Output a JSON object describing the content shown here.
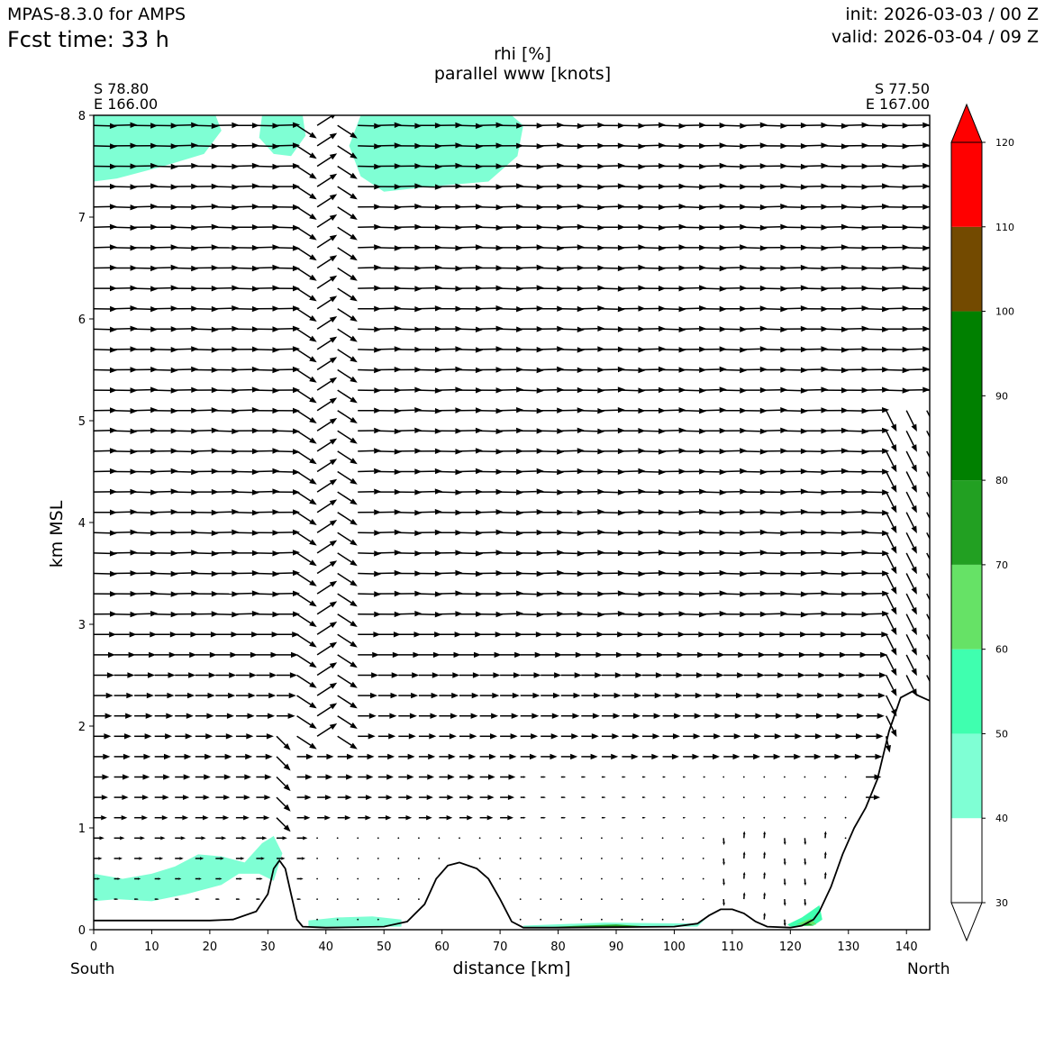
{
  "header": {
    "model": "MPAS-8.3.0 for AMPS",
    "fcst": "Fcst time:   33 h",
    "init": "init: 2026-03-03 / 00 Z",
    "valid": "valid: 2026-03-04 / 09 Z"
  },
  "chart_data": {
    "type": "contourf",
    "title": [
      "rhi [%]",
      "parallel www [knots]"
    ],
    "xlabel": "distance [km]",
    "ylabel": "km MSL",
    "xlim": [
      0,
      144
    ],
    "ylim": [
      0,
      8
    ],
    "xticks": [
      0,
      10,
      20,
      30,
      40,
      50,
      60,
      70,
      80,
      90,
      100,
      110,
      120,
      130,
      140
    ],
    "yticks": [
      0,
      1,
      2,
      3,
      4,
      5,
      6,
      7,
      8
    ],
    "endpoints": {
      "start": [
        "S 78.80",
        "E 166.00"
      ],
      "end": [
        "S 77.50",
        "E 167.00"
      ],
      "start_label": "South",
      "end_label": "North"
    },
    "colorbar": {
      "levels": [
        30,
        40,
        50,
        60,
        70,
        80,
        90,
        100,
        110,
        120
      ],
      "tick_labels": [
        "30",
        "40",
        "50",
        "60",
        "70",
        "80",
        "90",
        "100",
        "110",
        "120"
      ],
      "bins": [
        {
          "from": 30,
          "to": 40,
          "color": "#ffffff"
        },
        {
          "from": 40,
          "to": 50,
          "color": "#7fffd4"
        },
        {
          "from": 50,
          "to": 60,
          "color": "#3fffaf"
        },
        {
          "from": 60,
          "to": 70,
          "color": "#66e266"
        },
        {
          "from": 70,
          "to": 80,
          "color": "#22a022"
        },
        {
          "from": 80,
          "to": 100,
          "color": "#008000"
        },
        {
          "from": 100,
          "to": 110,
          "color": "#734a00"
        },
        {
          "from": 110,
          "to": 120,
          "color": "#ff0000"
        }
      ],
      "extend": "both"
    },
    "terrain_profile": [
      [
        0,
        0.09
      ],
      [
        10,
        0.09
      ],
      [
        20,
        0.09
      ],
      [
        24,
        0.1
      ],
      [
        28,
        0.18
      ],
      [
        30,
        0.35
      ],
      [
        31,
        0.6
      ],
      [
        32,
        0.68
      ],
      [
        33,
        0.6
      ],
      [
        34,
        0.35
      ],
      [
        35,
        0.1
      ],
      [
        36,
        0.03
      ],
      [
        40,
        0.02
      ],
      [
        50,
        0.03
      ],
      [
        54,
        0.08
      ],
      [
        57,
        0.25
      ],
      [
        59,
        0.5
      ],
      [
        61,
        0.63
      ],
      [
        63,
        0.66
      ],
      [
        66,
        0.6
      ],
      [
        68,
        0.5
      ],
      [
        70,
        0.3
      ],
      [
        72,
        0.08
      ],
      [
        74,
        0.02
      ],
      [
        80,
        0.02
      ],
      [
        100,
        0.03
      ],
      [
        104,
        0.06
      ],
      [
        106,
        0.14
      ],
      [
        108,
        0.2
      ],
      [
        110,
        0.2
      ],
      [
        112,
        0.16
      ],
      [
        114,
        0.08
      ],
      [
        116,
        0.03
      ],
      [
        120,
        0.02
      ],
      [
        122,
        0.04
      ],
      [
        124,
        0.1
      ],
      [
        125,
        0.18
      ],
      [
        127,
        0.42
      ],
      [
        129,
        0.74
      ],
      [
        131,
        1.0
      ],
      [
        133,
        1.2
      ],
      [
        135,
        1.48
      ],
      [
        137,
        1.95
      ],
      [
        139,
        2.28
      ],
      [
        141,
        2.34
      ],
      [
        142,
        2.3
      ],
      [
        144,
        2.25
      ]
    ],
    "rhi_regions": [
      {
        "color": "#7fffd4",
        "points": [
          [
            0,
            8
          ],
          [
            21,
            8
          ],
          [
            22,
            7.85
          ],
          [
            19,
            7.62
          ],
          [
            12,
            7.5
          ],
          [
            4,
            7.38
          ],
          [
            0,
            7.35
          ]
        ]
      },
      {
        "color": "#7fffd4",
        "points": [
          [
            29,
            8
          ],
          [
            36,
            8
          ],
          [
            36.5,
            7.8
          ],
          [
            34,
            7.6
          ],
          [
            31,
            7.62
          ],
          [
            28.5,
            7.78
          ]
        ]
      },
      {
        "color": "#7fffd4",
        "points": [
          [
            46,
            8
          ],
          [
            72,
            8
          ],
          [
            74,
            7.9
          ],
          [
            73,
            7.6
          ],
          [
            68,
            7.35
          ],
          [
            58,
            7.3
          ],
          [
            50,
            7.25
          ],
          [
            46,
            7.4
          ],
          [
            44,
            7.7
          ]
        ]
      },
      {
        "color": "#7fffd4",
        "points": [
          [
            0,
            0.55
          ],
          [
            5,
            0.5
          ],
          [
            10,
            0.55
          ],
          [
            14,
            0.62
          ],
          [
            18,
            0.74
          ],
          [
            22,
            0.72
          ],
          [
            26,
            0.66
          ],
          [
            29,
            0.85
          ],
          [
            31,
            0.92
          ],
          [
            32.5,
            0.75
          ],
          [
            31,
            0.48
          ],
          [
            28.5,
            0.55
          ],
          [
            25,
            0.55
          ],
          [
            22,
            0.44
          ],
          [
            16,
            0.35
          ],
          [
            10,
            0.28
          ],
          [
            4,
            0.3
          ],
          [
            0,
            0.28
          ]
        ]
      },
      {
        "color": "#7fffd4",
        "points": [
          [
            37,
            0.09
          ],
          [
            42,
            0.12
          ],
          [
            48,
            0.13
          ],
          [
            53,
            0.1
          ],
          [
            53,
            0.03
          ],
          [
            37,
            0.03
          ]
        ]
      },
      {
        "color": "#7fffd4",
        "points": [
          [
            74,
            0.04
          ],
          [
            88,
            0.07
          ],
          [
            104,
            0.06
          ],
          [
            106,
            0.14
          ],
          [
            104,
            0.03
          ],
          [
            74,
            0.02
          ]
        ]
      },
      {
        "color": "#3fffaf",
        "points": [
          [
            119.5,
            0.05
          ],
          [
            122,
            0.12
          ],
          [
            125,
            0.24
          ],
          [
            125.5,
            0.1
          ],
          [
            124,
            0.04
          ],
          [
            120,
            0.03
          ]
        ]
      },
      {
        "color": "#66e266",
        "points": [
          [
            121,
            0.05
          ],
          [
            123.5,
            0.11
          ],
          [
            124.5,
            0.05
          ]
        ]
      },
      {
        "color": "#22a022",
        "points": [
          [
            121.5,
            0.04
          ],
          [
            123,
            0.07
          ],
          [
            124,
            0.04
          ]
        ]
      },
      {
        "color": "#22a022",
        "points": [
          [
            79,
            0.03
          ],
          [
            90,
            0.05
          ],
          [
            96,
            0.03
          ]
        ]
      }
    ],
    "wind_field": {
      "x_start": 0,
      "x_step": 3.5,
      "z_start": 0.1,
      "z_step": 0.2,
      "units": "knots",
      "regimes": [
        "upper levels (z >= 3 km): strong flow from south to north across the section",
        "near x 33-43 km: strongly sheared, alternating arrows",
        "x 135-144 km: steep downslope arrows",
        "lowest 1 km between x 35 and 130 km: weak / calm"
      ]
    }
  }
}
